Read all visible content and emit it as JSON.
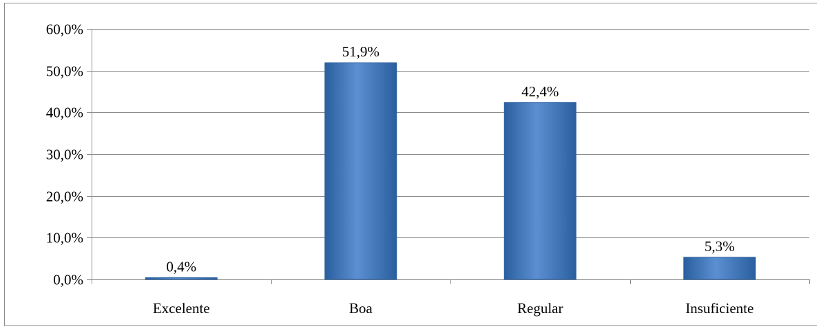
{
  "chart_data": {
    "type": "bar",
    "categories": [
      "Excelente",
      "Boa",
      "Regular",
      "Insuficiente"
    ],
    "values": [
      0.4,
      51.9,
      42.4,
      5.3
    ],
    "data_labels": [
      "0,4%",
      "51,9%",
      "42,4%",
      "5,3%"
    ],
    "title": "",
    "xlabel": "",
    "ylabel": "",
    "ylim": [
      0,
      60
    ],
    "y_ticks": [
      0,
      10,
      20,
      30,
      40,
      50,
      60
    ],
    "y_tick_labels": [
      "0,0%",
      "10,0%",
      "20,0%",
      "30,0%",
      "40,0%",
      "50,0%",
      "60,0%"
    ],
    "grid": true,
    "legend": "none",
    "bar_color": "#3a74bd",
    "bar_color_light": "#5b8fd1",
    "bar_color_dark": "#2a5f9f",
    "gridline_color": "#8c8c8c"
  }
}
